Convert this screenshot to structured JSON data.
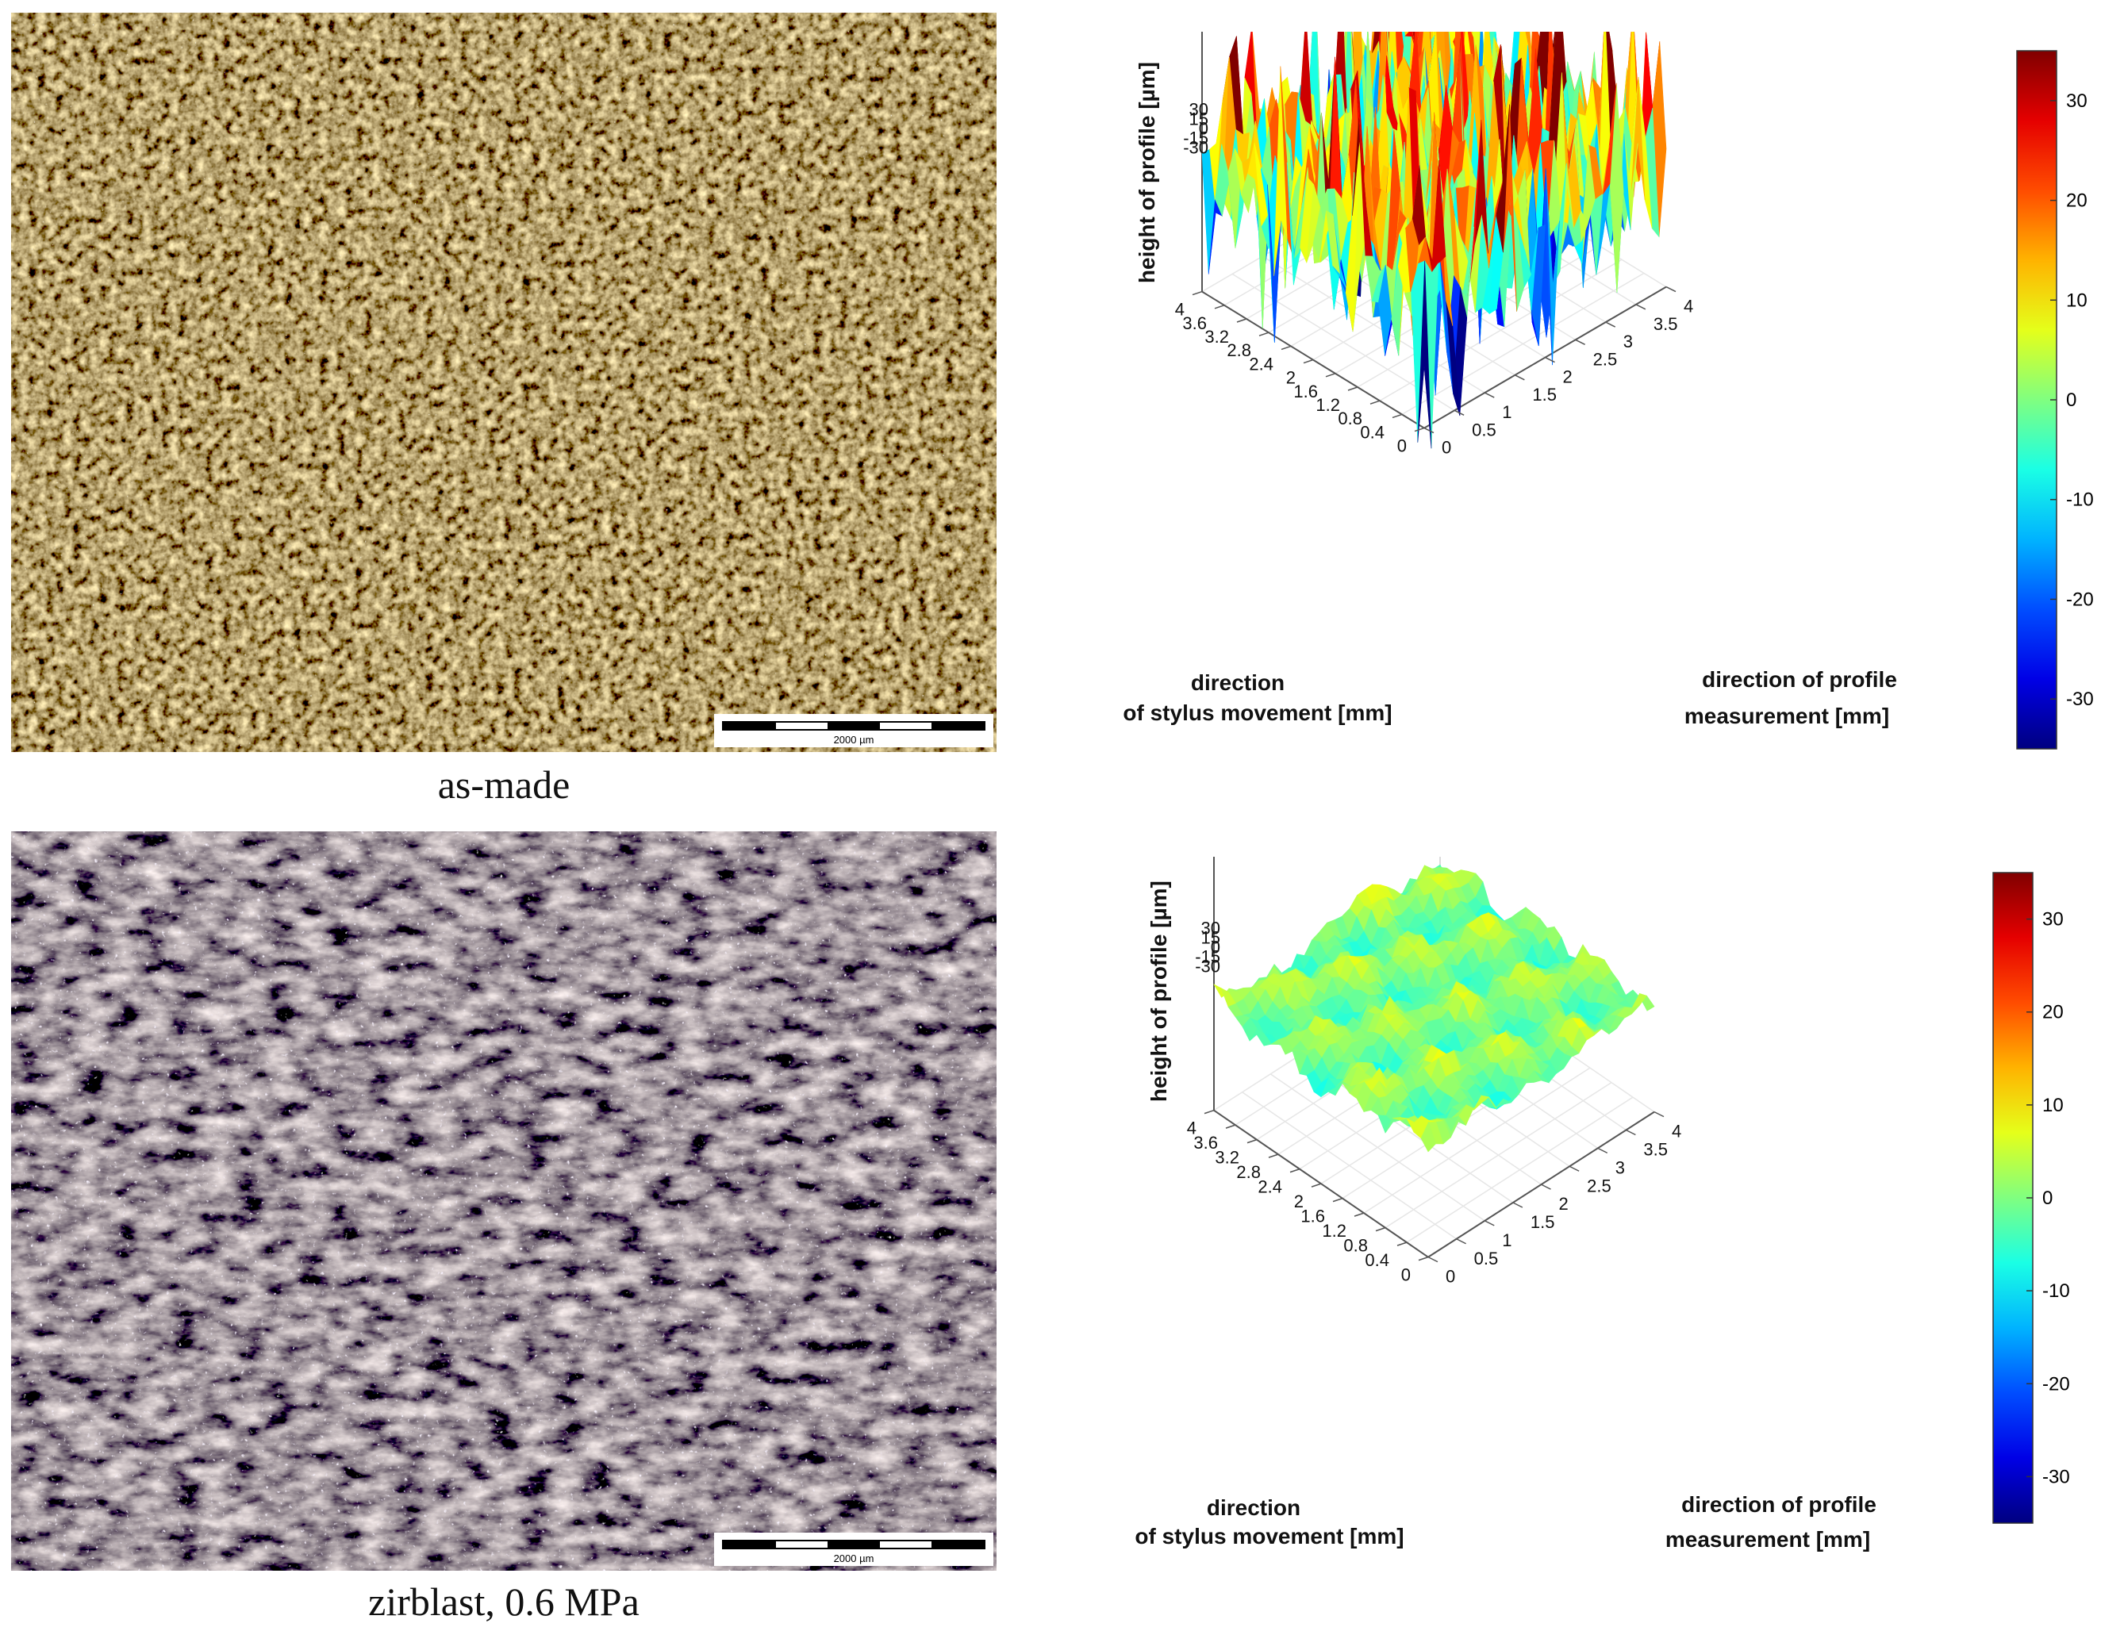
{
  "panels": [
    {
      "caption": "as-made",
      "scale_bar_label": "2000 µm",
      "plot": {
        "z_label": "height of profile [µm]",
        "z_ticks": [
          "30",
          "15",
          "0",
          "-15",
          "-30"
        ],
        "x_label_line1": "direction",
        "x_label_line2": "of stylus movement [mm]",
        "y_label_line1": "direction of profile",
        "y_label_line2": "measurement [mm]",
        "x_ticks": [
          "0",
          "0.4",
          "0.8",
          "1.2",
          "1.6",
          "2",
          "2.4",
          "2.8",
          "3.2",
          "3.6",
          "4"
        ],
        "y_ticks": [
          "0",
          "0.5",
          "1",
          "1.5",
          "2",
          "2.5",
          "3",
          "3.5",
          "4"
        ],
        "colorbar_ticks": [
          "30",
          "20",
          "10",
          "0",
          "-10",
          "-20",
          "-30"
        ],
        "colorbar_range": [
          -35,
          35
        ],
        "surface_style": "rough"
      }
    },
    {
      "caption": "zirblast, 0.6 MPa",
      "scale_bar_label": "2000 µm",
      "plot": {
        "z_label": "height of profile [µm]",
        "z_ticks": [
          "30",
          "15",
          "0",
          "-15",
          "-30"
        ],
        "x_label_line1": "direction",
        "x_label_line2": "of stylus movement [mm]",
        "y_label_line1": "direction of profile",
        "y_label_line2": "measurement [mm]",
        "x_ticks": [
          "0",
          "0.4",
          "0.8",
          "1.2",
          "1.6",
          "2",
          "2.4",
          "2.8",
          "3.2",
          "3.6",
          "4"
        ],
        "y_ticks": [
          "0",
          "0.5",
          "1",
          "1.5",
          "2",
          "2.5",
          "3",
          "3.5",
          "4"
        ],
        "colorbar_ticks": [
          "30",
          "20",
          "10",
          "0",
          "-10",
          "-20",
          "-30"
        ],
        "colorbar_range": [
          -35,
          35
        ],
        "surface_style": "smooth"
      }
    }
  ]
}
